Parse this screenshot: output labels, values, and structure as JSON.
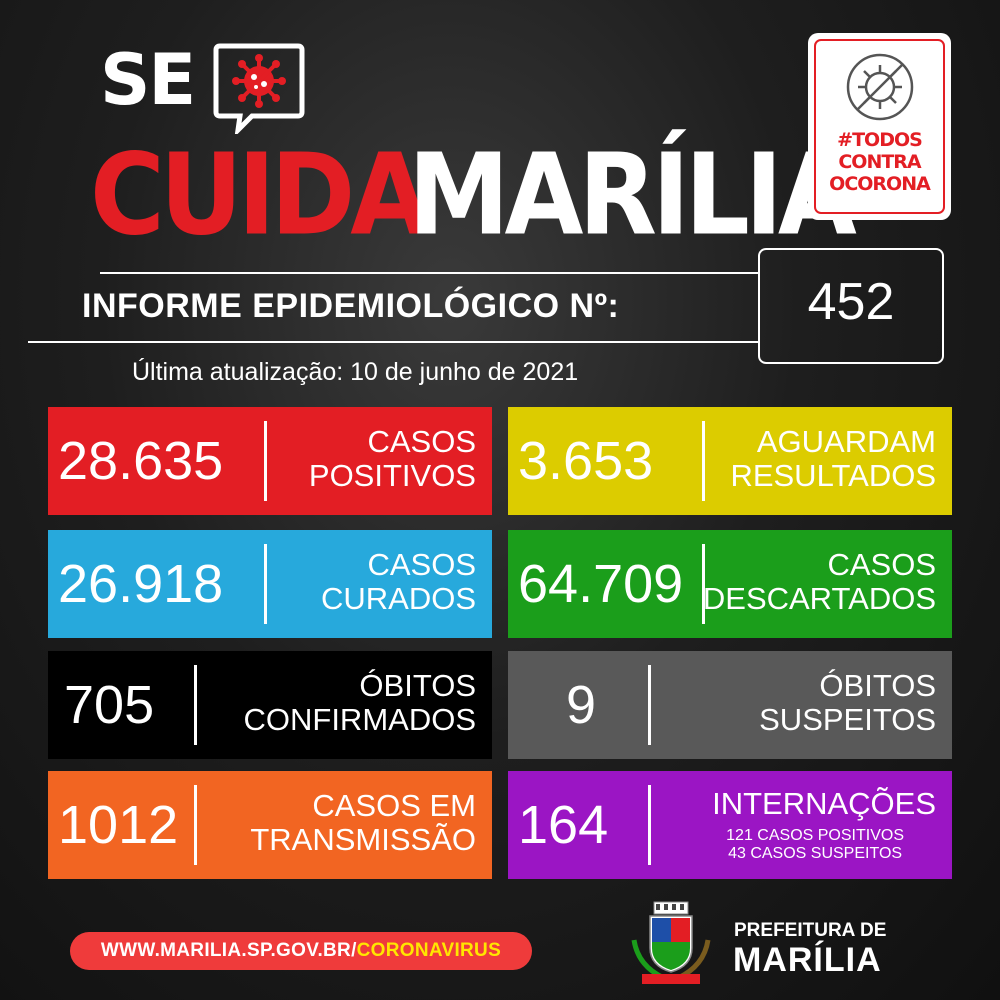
{
  "header": {
    "se": "SE",
    "cuida": "CUIDA",
    "marilia": "MARÍLIA"
  },
  "badge": {
    "text": "#TODOS\nCONTRA\nOCORONA"
  },
  "informe": {
    "label": "INFORME EPIDEMIOLÓGICO Nº:",
    "number": "452",
    "updated": "Última atualização: 10 de junho de 2021"
  },
  "cards": [
    {
      "value": "28.635",
      "label": "CASOS\nPOSITIVOS",
      "color": "#e31e24"
    },
    {
      "value": "3.653",
      "label": "AGUARDAM\nRESULTADOS",
      "color": "#dccc00"
    },
    {
      "value": "26.918",
      "label": "CASOS\nCURADOS",
      "color": "#27a9dc"
    },
    {
      "value": "64.709",
      "label": "CASOS\nDESCARTADOS",
      "color": "#1b9e1b"
    },
    {
      "value": "705",
      "label": "ÓBITOS\nCONFIRMADOS",
      "color": "#000000"
    },
    {
      "value": "9",
      "label": "ÓBITOS\nSUSPEITOS",
      "color": "#595959"
    },
    {
      "value": "1012",
      "label": "CASOS EM\nTRANSMISSÃO",
      "color": "#f26522"
    },
    {
      "value": "164",
      "label": "INTERNAÇÕES",
      "sub": "121 CASOS POSITIVOS\n43 CASOS SUSPEITOS",
      "color": "#9b15c4"
    }
  ],
  "footer": {
    "url_main": "WWW.MARILIA.SP.GOV.BR/",
    "url_highlight": "CORONAVIRUS",
    "pref_line1": "PREFEITURA DE",
    "pref_line2": "MARÍLIA"
  },
  "icons": [
    "virus-icon",
    "crossed-virus-icon",
    "municipal-crest-icon"
  ]
}
